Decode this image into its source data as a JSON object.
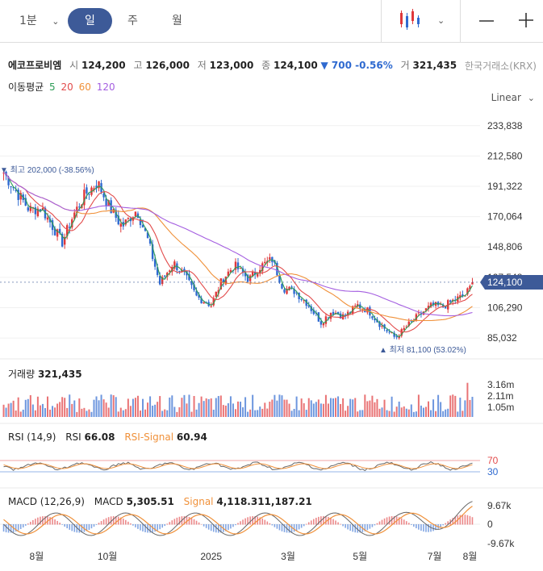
{
  "toolbar": {
    "interval": "1분",
    "periods": [
      "일",
      "주",
      "월"
    ],
    "active_period": "일"
  },
  "quote": {
    "name": "에코프로비엠",
    "open_label": "시",
    "open": "124,200",
    "high_label": "고",
    "high": "126,000",
    "low_label": "저",
    "low": "123,000",
    "close_label": "종",
    "close": "124,100",
    "change": "▼ 700 -0.56%",
    "volume_label": "거",
    "volume": "321,435",
    "exchange": "한국거래소(KRX)"
  },
  "ma_legend": {
    "label": "이동평균",
    "periods": [
      "5",
      "20",
      "60",
      "120"
    ]
  },
  "scale_mode": "Linear",
  "colors": {
    "up": "#e0383b",
    "down": "#2f6ad0",
    "ma5": "#2e9d57",
    "ma20": "#e24b4b",
    "ma60": "#f0913a",
    "ma120": "#a45ee0",
    "accent": "#3d5a98"
  },
  "chart_data": [
    {
      "type": "candlestick",
      "y_ticks": [
        "233,838",
        "212,580",
        "191,322",
        "170,064",
        "148,806",
        "127,548",
        "106,290",
        "85,032"
      ],
      "ylim": [
        80000,
        245000
      ],
      "current_price": "124,100",
      "max_annotation": "최고 202,000 (-38.56%)",
      "min_annotation": "최저 81,100 (53.02%)",
      "x_ticks": [
        "8월",
        "10월",
        "2025",
        "3월",
        "5월",
        "7월",
        "8월"
      ],
      "close_series": [
        {
          "x": "2024-07-15",
          "y": 201000
        },
        {
          "x": "2024-07-25",
          "y": 188000
        },
        {
          "x": "2024-08-05",
          "y": 175000
        },
        {
          "x": "2024-08-15",
          "y": 176000
        },
        {
          "x": "2024-08-25",
          "y": 162000
        },
        {
          "x": "2024-09-01",
          "y": 152000
        },
        {
          "x": "2024-09-10",
          "y": 171000
        },
        {
          "x": "2024-09-20",
          "y": 186000
        },
        {
          "x": "2024-09-30",
          "y": 194000
        },
        {
          "x": "2024-10-10",
          "y": 176000
        },
        {
          "x": "2024-10-20",
          "y": 163000
        },
        {
          "x": "2024-11-01",
          "y": 175000
        },
        {
          "x": "2024-11-10",
          "y": 154000
        },
        {
          "x": "2024-11-20",
          "y": 123000
        },
        {
          "x": "2024-12-01",
          "y": 138000
        },
        {
          "x": "2024-12-10",
          "y": 129000
        },
        {
          "x": "2024-12-20",
          "y": 114000
        },
        {
          "x": "2025-01-01",
          "y": 108000
        },
        {
          "x": "2025-01-10",
          "y": 126000
        },
        {
          "x": "2025-01-20",
          "y": 136000
        },
        {
          "x": "2025-02-01",
          "y": 126000
        },
        {
          "x": "2025-02-10",
          "y": 135000
        },
        {
          "x": "2025-02-20",
          "y": 140000
        },
        {
          "x": "2025-03-01",
          "y": 120000
        },
        {
          "x": "2025-03-10",
          "y": 118000
        },
        {
          "x": "2025-03-20",
          "y": 110000
        },
        {
          "x": "2025-04-01",
          "y": 96000
        },
        {
          "x": "2025-04-10",
          "y": 104000
        },
        {
          "x": "2025-04-20",
          "y": 100000
        },
        {
          "x": "2025-05-01",
          "y": 108000
        },
        {
          "x": "2025-05-10",
          "y": 104000
        },
        {
          "x": "2025-05-20",
          "y": 94000
        },
        {
          "x": "2025-06-01",
          "y": 85000
        },
        {
          "x": "2025-06-10",
          "y": 93000
        },
        {
          "x": "2025-06-20",
          "y": 101000
        },
        {
          "x": "2025-07-01",
          "y": 108000
        },
        {
          "x": "2025-07-10",
          "y": 107000
        },
        {
          "x": "2025-07-20",
          "y": 112000
        },
        {
          "x": "2025-07-28",
          "y": 115000
        },
        {
          "x": "2025-08-04",
          "y": 124100
        }
      ]
    },
    {
      "type": "bar",
      "title": "거래량",
      "value": "321,435",
      "y_ticks": [
        "3.16m",
        "2.11m",
        "1.05m"
      ]
    },
    {
      "type": "line",
      "title": "RSI (14,9)",
      "rsi_label": "RSI",
      "rsi": "66.08",
      "signal_label": "RSI-Signal",
      "signal": "60.94",
      "levels": [
        "70",
        "30"
      ]
    },
    {
      "type": "line",
      "title": "MACD (12,26,9)",
      "macd_label": "MACD",
      "macd": "5,305.51",
      "signal_label": "Signal",
      "signal": "4,118.311,187.21",
      "y_ticks": [
        "9.67k",
        "0",
        "-9.67k"
      ]
    }
  ]
}
